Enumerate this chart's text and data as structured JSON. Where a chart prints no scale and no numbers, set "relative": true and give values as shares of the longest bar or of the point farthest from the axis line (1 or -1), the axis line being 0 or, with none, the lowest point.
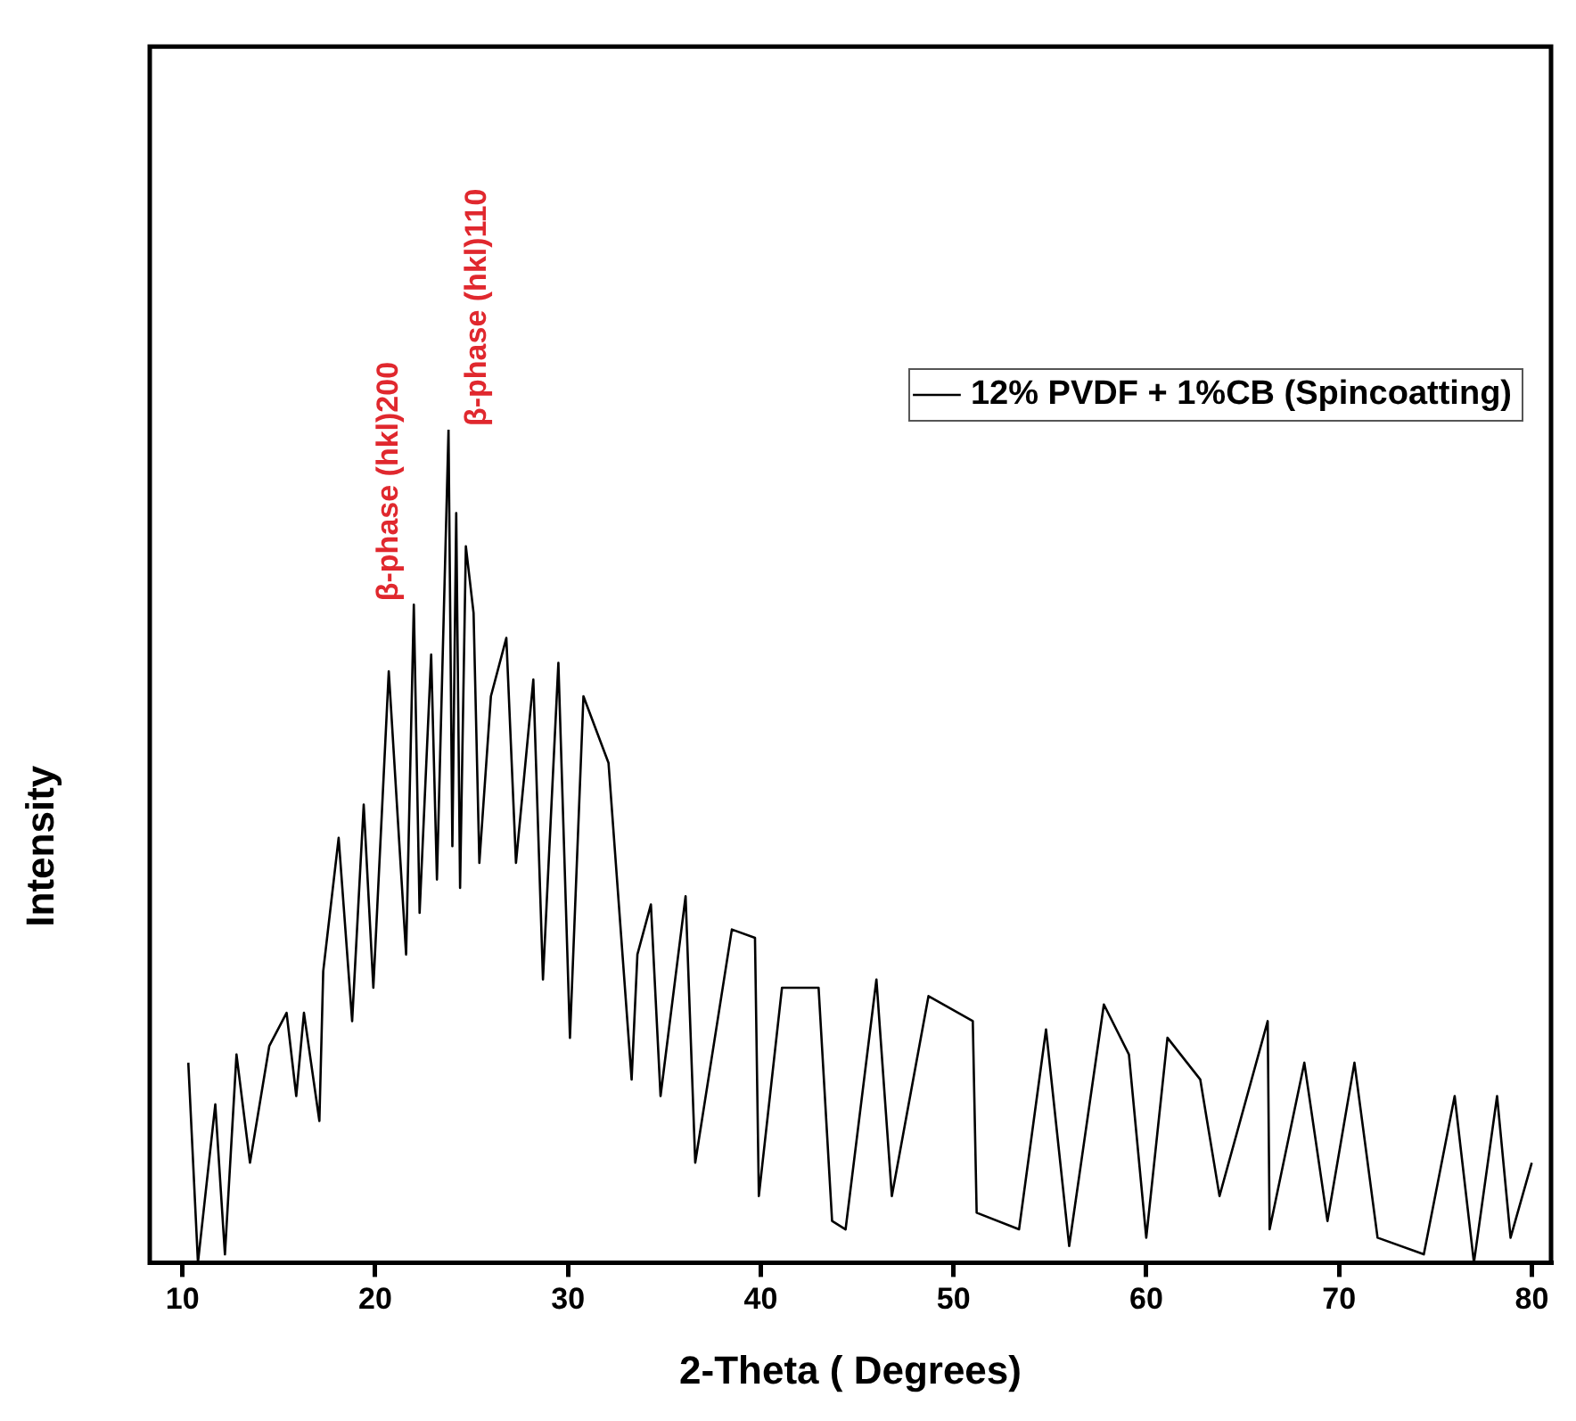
{
  "chart_data": {
    "type": "line",
    "xlabel": "2-Theta ( Degrees)",
    "ylabel": "Intensity",
    "relative": true,
    "legend": "top right",
    "marker": "none",
    "line_style": "solid",
    "grid": false,
    "xlim": [
      8.3,
      81
    ],
    "xticks": [
      10,
      20,
      30,
      40,
      50,
      60,
      70,
      80
    ],
    "annotations": [
      {
        "text": "β-phase (hkl)200",
        "x": 22.0,
        "y": 0.79
      },
      {
        "text": "β-phase (hkl)110",
        "x": 23.8,
        "y": 1.0
      }
    ],
    "series": [
      {
        "name": "12% PVDF + 1%CB (Spincoatting)",
        "color": "#000000",
        "x": [
          10.3,
          10.8,
          11.7,
          12.2,
          12.8,
          13.5,
          14.5,
          15.4,
          15.9,
          16.3,
          17.1,
          17.3,
          18.1,
          18.8,
          19.4,
          19.9,
          20.7,
          21.6,
          22.0,
          22.3,
          22.9,
          23.2,
          23.8,
          24.0,
          24.2,
          24.4,
          24.7,
          25.1,
          25.4,
          26.0,
          26.8,
          27.3,
          28.2,
          28.7,
          29.5,
          30.1,
          30.8,
          32.1,
          33.3,
          33.6,
          34.3,
          34.8,
          36.1,
          36.6,
          38.5,
          39.7,
          39.9,
          41.1,
          43.0,
          43.7,
          44.4,
          46.0,
          46.8,
          48.7,
          51.0,
          51.2,
          53.4,
          54.8,
          56.0,
          57.8,
          59.1,
          60.0,
          61.1,
          62.8,
          63.8,
          66.3,
          66.4,
          68.2,
          69.4,
          70.8,
          72.0,
          74.4,
          76.0,
          77.0,
          78.2,
          78.9,
          80.0
        ],
        "values": [
          0.24,
          0.0,
          0.19,
          0.01,
          0.25,
          0.12,
          0.26,
          0.3,
          0.2,
          0.3,
          0.17,
          0.35,
          0.51,
          0.29,
          0.55,
          0.33,
          0.71,
          0.37,
          0.79,
          0.42,
          0.73,
          0.46,
          1.0,
          0.5,
          0.9,
          0.45,
          0.86,
          0.78,
          0.48,
          0.68,
          0.75,
          0.48,
          0.7,
          0.34,
          0.72,
          0.27,
          0.68,
          0.6,
          0.22,
          0.37,
          0.43,
          0.2,
          0.44,
          0.12,
          0.4,
          0.39,
          0.08,
          0.33,
          0.33,
          0.05,
          0.04,
          0.34,
          0.08,
          0.32,
          0.29,
          0.06,
          0.04,
          0.28,
          0.02,
          0.31,
          0.25,
          0.03,
          0.27,
          0.22,
          0.08,
          0.29,
          0.04,
          0.24,
          0.05,
          0.24,
          0.03,
          0.01,
          0.2,
          0.0,
          0.2,
          0.03,
          0.12
        ]
      }
    ]
  }
}
